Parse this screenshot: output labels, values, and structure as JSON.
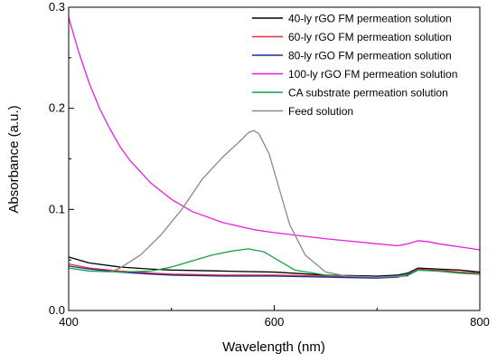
{
  "chart_data": {
    "type": "line",
    "xlabel": "Wavelength (nm)",
    "ylabel": "Absorbance (a.u.)",
    "xlim": [
      400,
      800
    ],
    "ylim": [
      0.0,
      0.3
    ],
    "xticks": [
      400,
      600,
      800
    ],
    "xtick_labels": [
      "400",
      "600",
      "800"
    ],
    "yticks": [
      0.0,
      0.1,
      0.2,
      0.3
    ],
    "ytick_labels": [
      "0.0",
      "0.1",
      "0.2",
      "0.3"
    ],
    "grid": false,
    "legend_position": "top-right",
    "series": [
      {
        "name": "40-ly rGO FM permeation solution",
        "color": "#000000",
        "x": [
          400,
          420,
          450,
          480,
          500,
          550,
          600,
          650,
          700,
          720,
          730,
          740,
          760,
          780,
          800
        ],
        "y": [
          0.053,
          0.047,
          0.043,
          0.041,
          0.04,
          0.039,
          0.038,
          0.035,
          0.034,
          0.035,
          0.037,
          0.042,
          0.041,
          0.04,
          0.038
        ]
      },
      {
        "name": "60-ly rGO FM permeation solution",
        "color": "#e0303a",
        "x": [
          400,
          420,
          450,
          480,
          500,
          550,
          600,
          650,
          700,
          720,
          730,
          740,
          760,
          780,
          800
        ],
        "y": [
          0.046,
          0.042,
          0.039,
          0.037,
          0.036,
          0.035,
          0.035,
          0.034,
          0.033,
          0.034,
          0.036,
          0.041,
          0.04,
          0.038,
          0.037
        ]
      },
      {
        "name": "80-ly rGO FM permeation solution",
        "color": "#1e2a9a",
        "x": [
          400,
          420,
          450,
          480,
          500,
          550,
          600,
          650,
          700,
          720,
          730,
          740,
          760,
          780,
          800
        ],
        "y": [
          0.044,
          0.041,
          0.038,
          0.036,
          0.035,
          0.034,
          0.034,
          0.033,
          0.032,
          0.033,
          0.035,
          0.04,
          0.039,
          0.037,
          0.036
        ]
      },
      {
        "name": "100-ly rGO FM permeation solution",
        "color": "#ea1ee0",
        "x": [
          400,
          410,
          420,
          430,
          440,
          450,
          460,
          480,
          500,
          520,
          550,
          580,
          600,
          650,
          700,
          720,
          730,
          740,
          750,
          760,
          780,
          800
        ],
        "y": [
          0.29,
          0.255,
          0.225,
          0.2,
          0.18,
          0.162,
          0.148,
          0.126,
          0.11,
          0.098,
          0.087,
          0.08,
          0.077,
          0.071,
          0.066,
          0.064,
          0.066,
          0.069,
          0.068,
          0.066,
          0.063,
          0.06
        ]
      },
      {
        "name": "CA substrate permeation solution",
        "color": "#17a04a",
        "x": [
          400,
          420,
          450,
          480,
          500,
          520,
          540,
          560,
          575,
          590,
          600,
          620,
          650,
          700,
          720,
          730,
          740,
          760,
          780,
          800
        ],
        "y": [
          0.042,
          0.039,
          0.038,
          0.039,
          0.043,
          0.049,
          0.055,
          0.059,
          0.061,
          0.058,
          0.052,
          0.04,
          0.035,
          0.033,
          0.034,
          0.036,
          0.04,
          0.039,
          0.037,
          0.036
        ]
      },
      {
        "name": "Feed solution",
        "color": "#8a8a8a",
        "x": [
          440,
          450,
          470,
          490,
          510,
          530,
          550,
          565,
          575,
          580,
          585,
          595,
          605,
          615,
          630,
          650,
          670,
          700,
          730
        ],
        "y": [
          0.038,
          0.042,
          0.055,
          0.075,
          0.1,
          0.13,
          0.152,
          0.166,
          0.176,
          0.178,
          0.175,
          0.155,
          0.12,
          0.085,
          0.055,
          0.038,
          0.034,
          0.033,
          0.034
        ]
      }
    ]
  }
}
